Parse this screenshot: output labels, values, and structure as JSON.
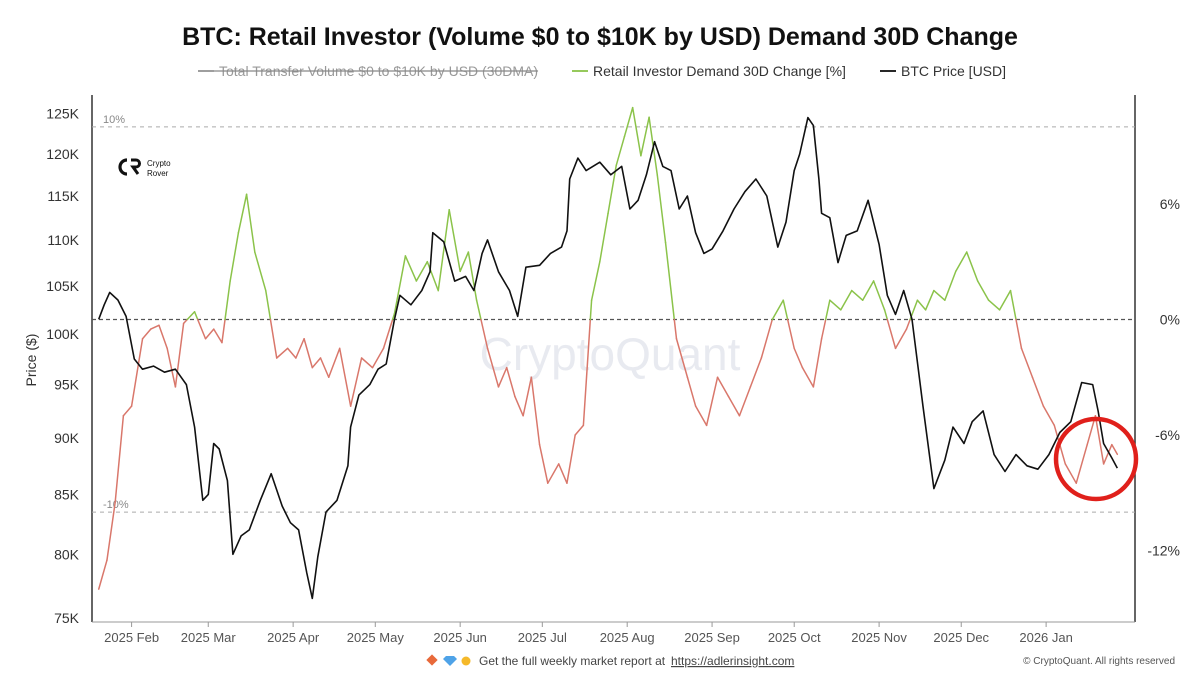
{
  "chart_data": {
    "type": "line",
    "title": "BTC: Retail Investor (Volume $0 to $10K by USD) Demand 30D Change",
    "legend": [
      {
        "label": "Total Transfer Volume $0 to $10K by USD (30DMA)",
        "color": "#888888",
        "hidden": true
      },
      {
        "label": "Retail Investor Demand 30D Change [%]",
        "color": "#8bc34a"
      },
      {
        "label": "BTC Price [USD]",
        "color": "#111111"
      }
    ],
    "ylabel_left": "Price ($)",
    "left_axis": {
      "scale": "log",
      "range": [
        75000,
        127000
      ],
      "ticks": [
        "125K",
        "120K",
        "115K",
        "110K",
        "105K",
        "100K",
        "95K",
        "90K",
        "85K",
        "80K",
        "75K"
      ]
    },
    "right_axis": {
      "range": [
        -15.5,
        11.5
      ],
      "ticks": [
        "6%",
        "0%",
        "-6%",
        "-12%"
      ]
    },
    "x_ticks": [
      "2025 Feb",
      "2025 Mar",
      "2025 Apr",
      "2025 May",
      "2025 Jun",
      "2025 Jul",
      "2025 Aug",
      "2025 Sep",
      "2025 Oct",
      "2025 Nov",
      "2025 Dec",
      "2026 Jan"
    ],
    "reference_lines": [
      {
        "value": 10,
        "label": "10%"
      },
      {
        "value": -10,
        "label": "-10%"
      },
      {
        "value": 0,
        "label": ""
      }
    ],
    "positive_color": "#8bc34a",
    "negative_color": "#d9776b",
    "series": [
      {
        "name": "BTC Price [USD]",
        "x": [
          "2025-01-20",
          "2025-01-22",
          "2025-01-24",
          "2025-01-27",
          "2025-01-30",
          "2025-02-02",
          "2025-02-05",
          "2025-02-09",
          "2025-02-13",
          "2025-02-17",
          "2025-02-21",
          "2025-02-24",
          "2025-02-27",
          "2025-03-01",
          "2025-03-03",
          "2025-03-05",
          "2025-03-08",
          "2025-03-10",
          "2025-03-13",
          "2025-03-16",
          "2025-03-20",
          "2025-03-24",
          "2025-03-28",
          "2025-03-31",
          "2025-04-03",
          "2025-04-06",
          "2025-04-08",
          "2025-04-10",
          "2025-04-13",
          "2025-04-17",
          "2025-04-21",
          "2025-04-22",
          "2025-04-25",
          "2025-04-29",
          "2025-05-02",
          "2025-05-05",
          "2025-05-08",
          "2025-05-10",
          "2025-05-14",
          "2025-05-18",
          "2025-05-21",
          "2025-05-22",
          "2025-05-26",
          "2025-05-30",
          "2025-06-03",
          "2025-06-06",
          "2025-06-09",
          "2025-06-11",
          "2025-06-15",
          "2025-06-19",
          "2025-06-22",
          "2025-06-25",
          "2025-06-30",
          "2025-07-04",
          "2025-07-08",
          "2025-07-10",
          "2025-07-11",
          "2025-07-14",
          "2025-07-17",
          "2025-07-22",
          "2025-07-26",
          "2025-07-30",
          "2025-08-02",
          "2025-08-05",
          "2025-08-08",
          "2025-08-11",
          "2025-08-14",
          "2025-08-17",
          "2025-08-20",
          "2025-08-23",
          "2025-08-26",
          "2025-08-29",
          "2025-09-01",
          "2025-09-05",
          "2025-09-09",
          "2025-09-13",
          "2025-09-17",
          "2025-09-21",
          "2025-09-25",
          "2025-09-28",
          "2025-10-01",
          "2025-10-03",
          "2025-10-06",
          "2025-10-08",
          "2025-10-10",
          "2025-10-11",
          "2025-10-14",
          "2025-10-17",
          "2025-10-20",
          "2025-10-24",
          "2025-10-28",
          "2025-11-01",
          "2025-11-04",
          "2025-11-07",
          "2025-11-10",
          "2025-11-13",
          "2025-11-17",
          "2025-11-21",
          "2025-11-25",
          "2025-11-28",
          "2025-12-02",
          "2025-12-05",
          "2025-12-09",
          "2025-12-13",
          "2025-12-17",
          "2025-12-21",
          "2025-12-25",
          "2025-12-29",
          "2026-01-02",
          "2026-01-06",
          "2026-01-10",
          "2026-01-14",
          "2026-01-18",
          "2026-01-20",
          "2026-01-22",
          "2026-01-25",
          "2026-01-27"
        ],
        "y": [
          101500,
          103000,
          104300,
          103500,
          101800,
          97500,
          96500,
          96800,
          96200,
          96500,
          95000,
          91000,
          84500,
          85000,
          89500,
          89000,
          86200,
          80000,
          81500,
          82000,
          84500,
          86800,
          84000,
          82600,
          82000,
          78500,
          76500,
          79800,
          83500,
          84500,
          87500,
          91000,
          94000,
          95000,
          96500,
          97000,
          101500,
          104000,
          103000,
          104500,
          106500,
          110800,
          109800,
          105500,
          106000,
          104500,
          108500,
          110000,
          106500,
          104500,
          101800,
          107000,
          107200,
          108500,
          109200,
          111000,
          117000,
          119500,
          118000,
          119000,
          117500,
          118500,
          113500,
          114500,
          117500,
          121500,
          118500,
          118000,
          113500,
          115000,
          110800,
          108500,
          109000,
          111000,
          113500,
          115500,
          117000,
          115000,
          109200,
          112000,
          118000,
          120000,
          124500,
          123500,
          117000,
          113000,
          112500,
          107500,
          110500,
          111000,
          114500,
          109500,
          104000,
          102000,
          104500,
          101500,
          93000,
          85500,
          88000,
          91000,
          89500,
          91500,
          92500,
          88500,
          87000,
          88500,
          87500,
          87200,
          88500,
          90500,
          91500,
          95200,
          95000,
          92500,
          89500,
          88200,
          87300
        ]
      },
      {
        "name": "Retail Investor Demand 30D Change [%]",
        "x": [
          "2025-01-20",
          "2025-01-23",
          "2025-01-26",
          "2025-01-29",
          "2025-02-01",
          "2025-02-05",
          "2025-02-08",
          "2025-02-11",
          "2025-02-14",
          "2025-02-17",
          "2025-02-20",
          "2025-02-24",
          "2025-02-28",
          "2025-03-03",
          "2025-03-06",
          "2025-03-09",
          "2025-03-12",
          "2025-03-15",
          "2025-03-18",
          "2025-03-22",
          "2025-03-26",
          "2025-03-30",
          "2025-04-02",
          "2025-04-05",
          "2025-04-08",
          "2025-04-11",
          "2025-04-14",
          "2025-04-18",
          "2025-04-22",
          "2025-04-26",
          "2025-04-30",
          "2025-05-04",
          "2025-05-08",
          "2025-05-12",
          "2025-05-16",
          "2025-05-20",
          "2025-05-24",
          "2025-05-28",
          "2025-06-01",
          "2025-06-04",
          "2025-06-07",
          "2025-06-11",
          "2025-06-15",
          "2025-06-18",
          "2025-06-21",
          "2025-06-24",
          "2025-06-27",
          "2025-06-30",
          "2025-07-03",
          "2025-07-07",
          "2025-07-10",
          "2025-07-13",
          "2025-07-16",
          "2025-07-19",
          "2025-07-22",
          "2025-07-25",
          "2025-07-28",
          "2025-07-31",
          "2025-08-03",
          "2025-08-06",
          "2025-08-09",
          "2025-08-12",
          "2025-08-15",
          "2025-08-19",
          "2025-08-23",
          "2025-08-26",
          "2025-08-30",
          "2025-09-03",
          "2025-09-07",
          "2025-09-11",
          "2025-09-15",
          "2025-09-19",
          "2025-09-23",
          "2025-09-27",
          "2025-10-01",
          "2025-10-04",
          "2025-10-08",
          "2025-10-11",
          "2025-10-14",
          "2025-10-18",
          "2025-10-22",
          "2025-10-26",
          "2025-10-30",
          "2025-11-03",
          "2025-11-07",
          "2025-11-11",
          "2025-11-15",
          "2025-11-18",
          "2025-11-21",
          "2025-11-25",
          "2025-11-29",
          "2025-12-03",
          "2025-12-07",
          "2025-12-11",
          "2025-12-15",
          "2025-12-19",
          "2025-12-23",
          "2025-12-27",
          "2025-12-31",
          "2026-01-04",
          "2026-01-08",
          "2026-01-12",
          "2026-01-16",
          "2026-01-19",
          "2026-01-22",
          "2026-01-25",
          "2026-01-27"
        ],
        "y": [
          -14.0,
          -12.5,
          -9.5,
          -5.0,
          -4.5,
          -1.0,
          -0.5,
          -0.3,
          -1.5,
          -3.5,
          -0.2,
          0.4,
          -1.0,
          -0.5,
          -1.2,
          2.0,
          4.5,
          6.5,
          3.5,
          1.5,
          -2.0,
          -1.5,
          -2.0,
          -1.0,
          -2.5,
          -2.0,
          -3.0,
          -1.5,
          -4.5,
          -2.0,
          -2.5,
          -1.5,
          0.3,
          3.3,
          2.0,
          3.0,
          1.5,
          5.7,
          2.5,
          3.5,
          1.0,
          -1.5,
          -3.5,
          -2.5,
          -4.0,
          -5.0,
          -3.0,
          -6.5,
          -8.5,
          -7.5,
          -8.5,
          -6.0,
          -5.5,
          1.0,
          3.0,
          5.5,
          8.0,
          9.5,
          11.0,
          8.5,
          10.5,
          7.5,
          4.0,
          -1.0,
          -3.0,
          -4.5,
          -5.5,
          -3.0,
          -4.0,
          -5.0,
          -3.5,
          -2.0,
          0.0,
          1.0,
          -1.5,
          -2.5,
          -3.5,
          -1.0,
          1.0,
          0.5,
          1.5,
          1.0,
          2.0,
          0.5,
          -1.5,
          -0.5,
          1.0,
          0.5,
          1.5,
          1.0,
          2.5,
          3.5,
          2.0,
          1.0,
          0.5,
          1.5,
          -1.5,
          -3.0,
          -4.5,
          -5.5,
          -7.5,
          -8.5,
          -6.5,
          -5.0,
          -7.5,
          -6.5,
          -7.0
        ]
      }
    ]
  },
  "branding": {
    "logo_text_line1": "Crypto",
    "logo_text_line2": "Rover",
    "watermark": "CryptoQuant"
  },
  "footer": {
    "icons": "◆ 💎 🙌",
    "text": "Get the full weekly market report at",
    "link": "https://adlerinsight.com",
    "copyright": "© CryptoQuant. All rights reserved"
  }
}
